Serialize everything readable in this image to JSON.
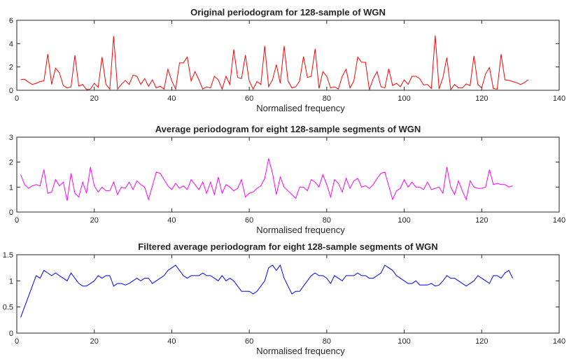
{
  "chart_data": [
    {
      "type": "line",
      "title": "Original periodogram for 128-sample of WGN",
      "xlabel": "Normalised frequency",
      "ylabel": "",
      "xlim": [
        0,
        140
      ],
      "ylim": [
        0,
        6
      ],
      "xticks": [
        0,
        20,
        40,
        60,
        80,
        100,
        120,
        140
      ],
      "yticks": [
        0,
        2,
        4,
        6
      ],
      "grid": false,
      "series": [
        {
          "name": "Original periodogram",
          "color": "#ff0000",
          "x_start": 1,
          "values": [
            0.9,
            0.95,
            0.7,
            0.5,
            0.6,
            0.75,
            0.8,
            3.1,
            0.5,
            1.9,
            1.5,
            0.4,
            0.2,
            0.3,
            3.0,
            0.35,
            0.5,
            0.05,
            0.1,
            0.6,
            0.25,
            2.85,
            0.5,
            0.1,
            4.65,
            0.1,
            0.5,
            0.85,
            0.5,
            1.3,
            1.2,
            0.5,
            1.0,
            0.35,
            0.9,
            0.2,
            0.35,
            0.1,
            1.8,
            0.8,
            0.1,
            2.35,
            2.35,
            2.85,
            0.8,
            1.6,
            0.9,
            0.1,
            0.3,
            0.2,
            1.2,
            0.9,
            0.1,
            1.2,
            0.5,
            3.5,
            1.1,
            1.0,
            3.0,
            0.8,
            0.1,
            0.75,
            0.5,
            3.8,
            0.3,
            0.9,
            2.2,
            0.6,
            3.8,
            0.8,
            0.2,
            0.3,
            0.8,
            2.9,
            1.1,
            1.2,
            3.55,
            0.15,
            1.6,
            1.2,
            0.2,
            0.3,
            0.1,
            1.2,
            1.8,
            0.2,
            0.8,
            2.85,
            2.4,
            2.4,
            0.05,
            1.0,
            1.6,
            0.3,
            0.2,
            1.85,
            0.4,
            0.6,
            0.3,
            0.9,
            0.5,
            1.2,
            1.2,
            1.0,
            0.45,
            0.5,
            0.15,
            4.7,
            0.1,
            1.1,
            2.8,
            0.05,
            0.5,
            0.2,
            0.2,
            0.55,
            0.4,
            2.95,
            0.5,
            0.2,
            1.4,
            1.95,
            0.15,
            0.1,
            3.1,
            0.9,
            0.85,
            0.75,
            0.65,
            0.5,
            0.65,
            0.9
          ]
        }
      ]
    },
    {
      "type": "line",
      "title": "Average periodogram for eight 128-sample segments of WGN",
      "xlabel": "Normalised frequency",
      "ylabel": "",
      "xlim": [
        0,
        140
      ],
      "ylim": [
        0,
        3
      ],
      "xticks": [
        0,
        20,
        40,
        60,
        80,
        100,
        120,
        140
      ],
      "yticks": [
        0,
        1,
        2,
        3
      ],
      "grid": false,
      "series": [
        {
          "name": "Average periodogram",
          "color": "#ff00ff",
          "x_start": 1,
          "values": [
            1.5,
            1.1,
            0.95,
            1.05,
            1.1,
            1.05,
            1.7,
            0.75,
            0.8,
            1.3,
            1.05,
            1.2,
            0.45,
            1.55,
            0.75,
            0.6,
            1.2,
            0.75,
            1.8,
            1.05,
            0.8,
            1.0,
            0.85,
            0.85,
            1.2,
            0.7,
            1.0,
            0.95,
            1.2,
            0.9,
            1.25,
            1.1,
            1.0,
            0.5,
            1.05,
            1.6,
            1.55,
            1.3,
            1.05,
            0.9,
            1.15,
            0.95,
            1.05,
            0.9,
            1.3,
            1.1,
            0.9,
            1.2,
            0.75,
            1.2,
            0.7,
            1.4,
            0.75,
            1.1,
            1.0,
            0.85,
            0.95,
            1.3,
            0.6,
            0.75,
            0.8,
            0.95,
            1.05,
            1.35,
            2.15,
            1.55,
            0.7,
            1.4,
            1.0,
            0.85,
            0.7,
            0.55,
            1.0,
            1.0,
            0.85,
            1.3,
            1.2,
            1.0,
            1.5,
            1.1,
            0.6,
            1.3,
            1.15,
            0.8,
            1.35,
            0.95,
            1.25,
            1.35,
            1.0,
            1.05,
            0.95,
            1.1,
            1.35,
            1.55,
            1.6,
            1.05,
            0.5,
            0.85,
            0.95,
            1.3,
            1.0,
            1.2,
            1.0,
            1.0,
            0.9,
            1.2,
            0.9,
            0.95,
            1.0,
            0.75,
            1.8,
            1.0,
            0.7,
            1.25,
            0.85,
            0.5,
            1.25,
            1.0,
            0.95,
            0.95,
            1.0,
            1.7,
            1.1,
            1.15,
            1.1,
            1.1,
            1.0,
            1.05
          ]
        }
      ]
    },
    {
      "type": "line",
      "title": "Filtered average periodogram for eight 128-sample segments of WGN",
      "xlabel": "Normalised frequency",
      "ylabel": "",
      "xlim": [
        0,
        140
      ],
      "ylim": [
        0,
        1.5
      ],
      "xticks": [
        0,
        20,
        40,
        60,
        80,
        100,
        120,
        140
      ],
      "yticks": [
        0,
        0.5,
        1,
        1.5
      ],
      "grid": false,
      "series": [
        {
          "name": "Filtered average periodogram",
          "color": "#0000ff",
          "x_start": 1,
          "values": [
            0.3,
            0.5,
            0.7,
            0.9,
            1.1,
            1.05,
            1.2,
            1.15,
            1.1,
            1.15,
            1.1,
            1.05,
            1.0,
            1.15,
            1.05,
            0.95,
            0.9,
            0.9,
            0.95,
            1.0,
            1.1,
            1.05,
            1.1,
            1.1,
            0.9,
            0.95,
            0.95,
            0.92,
            0.95,
            1.0,
            1.05,
            1.0,
            1.05,
            1.05,
            0.95,
            1.0,
            1.05,
            1.1,
            1.2,
            1.25,
            1.3,
            1.2,
            1.1,
            1.05,
            1.1,
            1.1,
            1.1,
            1.15,
            1.1,
            1.1,
            1.05,
            1.0,
            1.1,
            1.0,
            1.05,
            1.0,
            0.9,
            0.8,
            0.8,
            0.8,
            0.75,
            0.8,
            0.9,
            1.0,
            1.25,
            1.3,
            1.2,
            1.3,
            1.05,
            0.9,
            0.75,
            0.8,
            0.8,
            0.9,
            1.0,
            1.1,
            1.15,
            1.1,
            1.1,
            1.05,
            0.95,
            1.1,
            1.05,
            1.0,
            1.1,
            1.1,
            1.1,
            1.15,
            1.1,
            1.1,
            1.05,
            1.05,
            1.1,
            1.15,
            1.3,
            1.25,
            1.2,
            1.1,
            1.05,
            1.0,
            0.95,
            0.95,
            1.0,
            0.92,
            0.92,
            0.92,
            0.95,
            0.9,
            0.92,
            1.0,
            1.1,
            1.05,
            1.05,
            1.0,
            0.95,
            0.9,
            0.95,
            1.0,
            1.1,
            1.05,
            1.0,
            0.95,
            1.1,
            1.1,
            1.05,
            1.15,
            1.2,
            1.05
          ]
        }
      ]
    }
  ]
}
